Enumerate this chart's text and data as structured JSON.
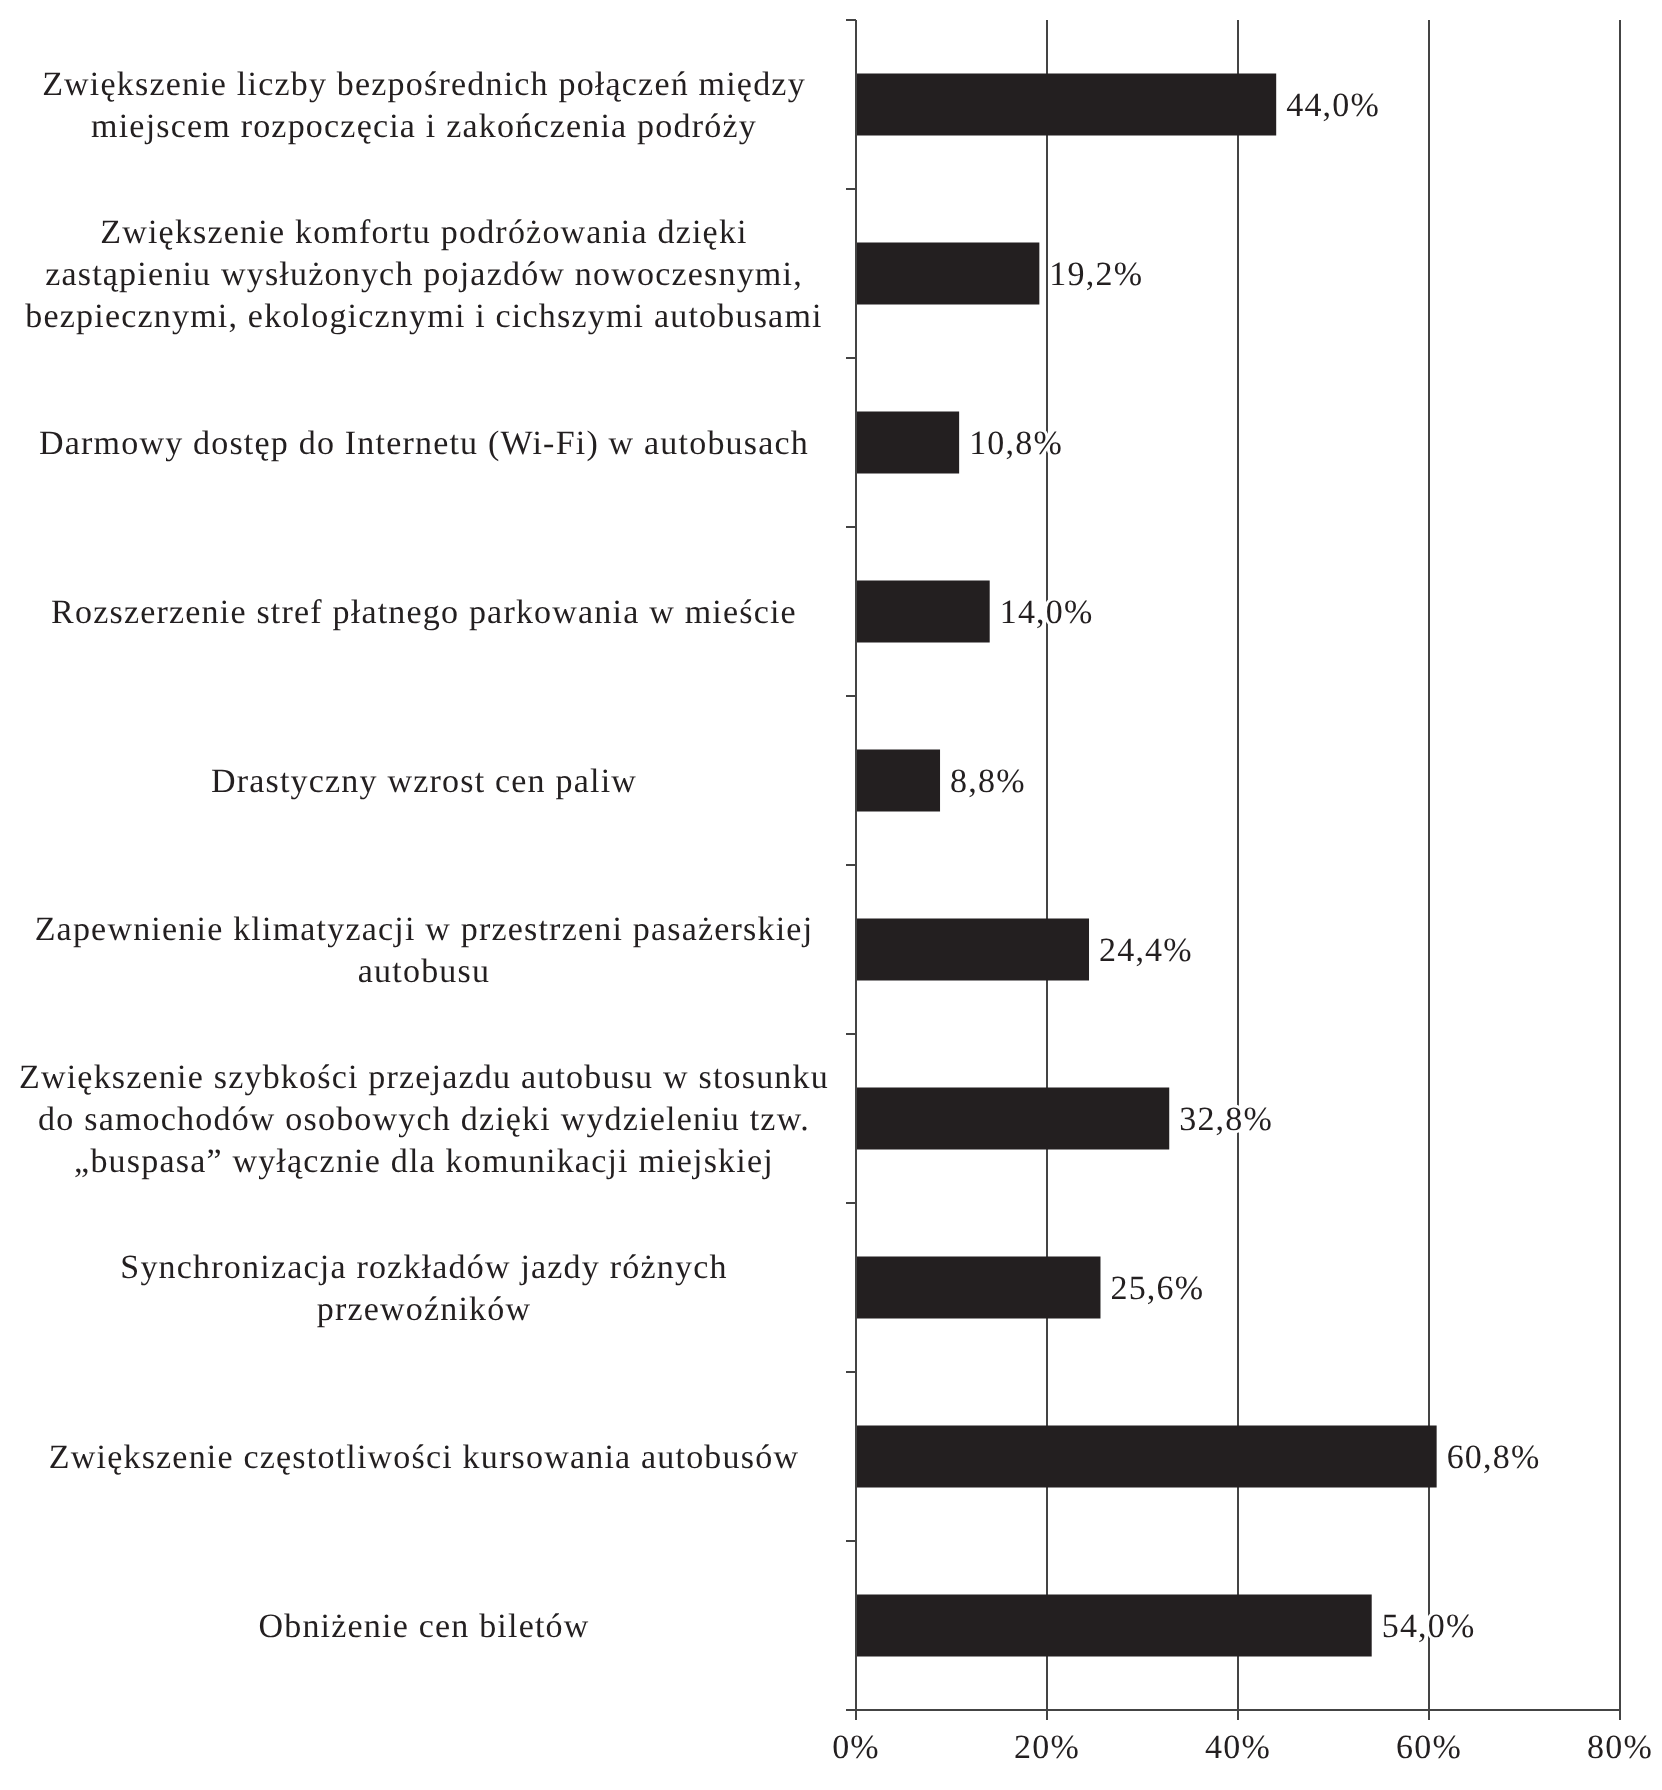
{
  "chart_data": {
    "type": "bar",
    "orientation": "horizontal",
    "categories": [
      "Zwiększenie liczby bezpośrednich połączeń między miejscem rozpoczęcia i zakończenia podróży",
      "Zwiększenie komfortu podróżowania dzięki zastąpieniu wysłużonych pojazdów nowoczesnymi, bezpiecznymi, ekologicznymi i cichszymi autobusami",
      "Darmowy dostęp do Internetu (Wi-Fi) w autobusach",
      "Rozszerzenie stref płatnego parkowania w mieście",
      "Drastyczny wzrost cen paliw",
      "Zapewnienie klimatyzacji w przestrzeni pasażerskiej autobusu",
      "Zwiększenie szybkości przejazdu autobusu w stosunku do samochodów osobowych dzięki wydzieleniu tzw. „buspasa” wyłącznie dla komunikacji miejskiej",
      "Synchronizacja rozkładów jazdy różnych przewoźników",
      "Zwiększenie częstotliwości kursowania autobusów",
      "Obniżenie cen biletów"
    ],
    "values": [
      44.0,
      19.2,
      10.8,
      14.0,
      8.8,
      24.4,
      32.8,
      25.6,
      60.8,
      54.0
    ],
    "value_labels": [
      "44,0%",
      "19,2%",
      "10,8%",
      "14,0%",
      "8,8%",
      "24,4%",
      "32,8%",
      "25,6%",
      "60,8%",
      "54,0%"
    ],
    "color": "#231f20",
    "xlim": [
      0,
      80
    ],
    "xticks": [
      {
        "value": 0,
        "label": "0%"
      },
      {
        "value": 20,
        "label": "20%"
      },
      {
        "value": 40,
        "label": "40%"
      },
      {
        "value": 60,
        "label": "60%"
      },
      {
        "value": 80,
        "label": "80%"
      }
    ],
    "grid": "x"
  }
}
